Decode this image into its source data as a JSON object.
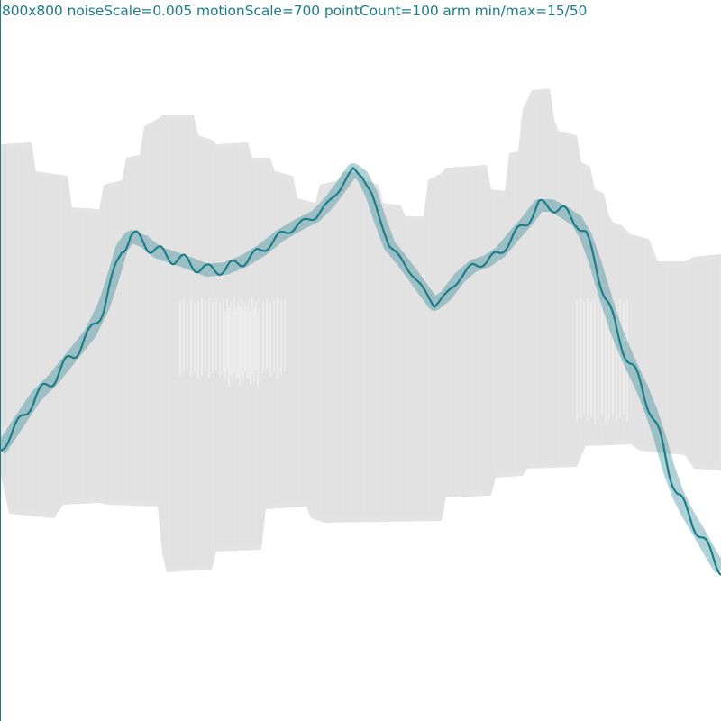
{
  "caption": "800x800 noiseScale=0.005 motionScale=700 pointCount=100 arm min/max=15/50",
  "colors": {
    "background": "#ffffff",
    "ghost": "#e3e3e3",
    "ghost_edge": "#d9d9d9",
    "teal_dark": "#1a7e8a",
    "teal_light": "#c5e9ee"
  }
}
